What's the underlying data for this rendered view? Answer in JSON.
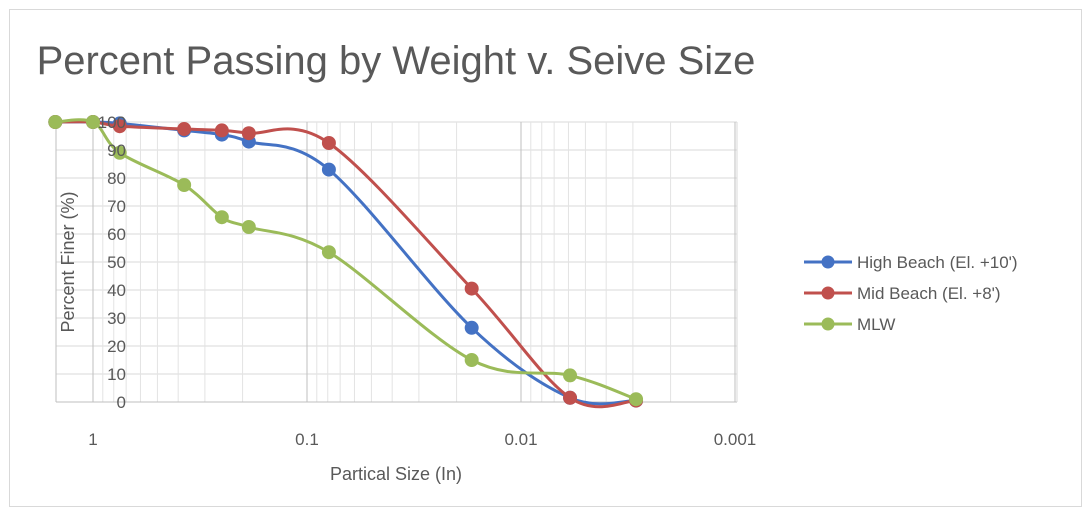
{
  "chart_data": {
    "type": "line",
    "title": "Percent Passing by Weight v. Seive Size",
    "xlabel": "Partical Size (In)",
    "ylabel": "Percent Finer (%)",
    "x_scale": "log-reversed",
    "xlim": [
      1.5,
      0.001
    ],
    "ylim": [
      0,
      100
    ],
    "x_ticks": [
      1,
      0.1,
      0.01,
      0.001
    ],
    "x_tick_labels": [
      "1",
      "0.1",
      "0.01",
      "0.001"
    ],
    "y_ticks": [
      0,
      10,
      20,
      30,
      40,
      50,
      60,
      70,
      80,
      90,
      100
    ],
    "y_tick_labels": [
      "0",
      "10",
      "20",
      "30",
      "40",
      "50",
      "60",
      "70",
      "80",
      "90",
      "100"
    ],
    "grid": true,
    "legend_position": "right",
    "series": [
      {
        "name": "High Beach (El. +10')",
        "color": "#4472c4",
        "x": [
          1.5,
          1.0,
          0.75,
          0.375,
          0.25,
          0.187,
          0.079,
          0.017,
          0.0059,
          0.0029
        ],
        "y": [
          100,
          100,
          99.5,
          97,
          95.5,
          93,
          83,
          26.5,
          1.5,
          0.5
        ]
      },
      {
        "name": "Mid Beach (El. +8')",
        "color": "#c0504d",
        "x": [
          1.5,
          1.0,
          0.75,
          0.375,
          0.25,
          0.187,
          0.079,
          0.017,
          0.0059,
          0.0029
        ],
        "y": [
          100,
          100,
          98.5,
          97.5,
          97,
          96,
          92.5,
          40.5,
          1.5,
          0.5
        ]
      },
      {
        "name": "MLW",
        "color": "#9bbb59",
        "x": [
          1.5,
          1.0,
          0.75,
          0.375,
          0.25,
          0.187,
          0.079,
          0.017,
          0.0059,
          0.0029
        ],
        "y": [
          100,
          100,
          89,
          77.5,
          66,
          62.5,
          53.5,
          15,
          9.5,
          1
        ]
      }
    ]
  }
}
